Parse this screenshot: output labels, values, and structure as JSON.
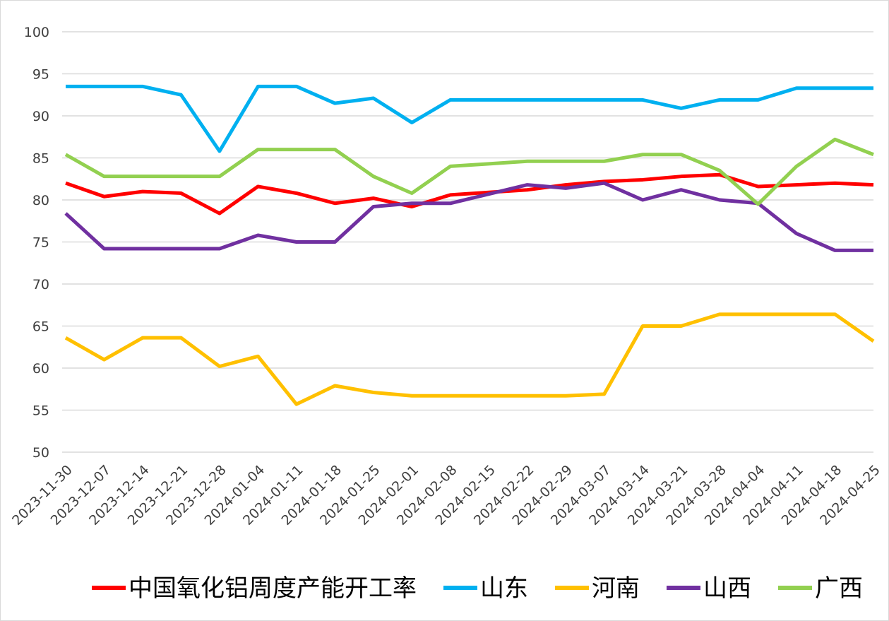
{
  "chart_data": {
    "type": "line",
    "categories": [
      "2023-11-30",
      "2023-12-07",
      "2023-12-14",
      "2023-12-21",
      "2023-12-28",
      "2024-01-04",
      "2024-01-11",
      "2024-01-18",
      "2024-01-25",
      "2024-02-01",
      "2024-02-08",
      "2024-02-15",
      "2024-02-22",
      "2024-02-29",
      "2024-03-07",
      "2024-03-14",
      "2024-03-21",
      "2024-03-28",
      "2024-04-04",
      "2024-04-11",
      "2024-04-18",
      "2024-04-25"
    ],
    "series": [
      {
        "name": "中国氧化铝周度产能开工率",
        "color": "#ff0000",
        "values": [
          82,
          80.4,
          81,
          80.8,
          78.4,
          81.6,
          80.8,
          79.6,
          80.2,
          79.2,
          80.6,
          80.9,
          81.2,
          81.8,
          82.2,
          82.4,
          82.8,
          83,
          81.6,
          81.8,
          82,
          81.8
        ]
      },
      {
        "name": "山东",
        "color": "#00b0f0",
        "values": [
          93.5,
          93.5,
          93.5,
          92.5,
          85.8,
          93.5,
          93.5,
          91.5,
          92.1,
          89.2,
          91.9,
          91.9,
          91.9,
          91.9,
          91.9,
          91.9,
          90.9,
          91.9,
          91.9,
          93.3,
          93.3,
          93.3
        ]
      },
      {
        "name": "河南",
        "color": "#ffc000",
        "values": [
          63.6,
          61,
          63.6,
          63.6,
          60.2,
          61.4,
          55.7,
          57.9,
          57.1,
          56.7,
          56.7,
          56.7,
          56.7,
          56.7,
          56.9,
          65,
          65,
          66.4,
          66.4,
          66.4,
          66.4,
          63.2
        ]
      },
      {
        "name": "山西",
        "color": "#7030a0",
        "values": [
          78.4,
          74.2,
          74.2,
          74.2,
          74.2,
          75.8,
          75,
          75,
          79.2,
          79.6,
          79.6,
          80.7,
          81.8,
          81.4,
          82,
          80,
          81.2,
          80,
          79.6,
          76,
          74,
          74
        ]
      },
      {
        "name": "广西",
        "color": "#92d050",
        "values": [
          85.4,
          82.8,
          82.8,
          82.8,
          82.8,
          86,
          86,
          86,
          82.8,
          80.8,
          84,
          84.3,
          84.6,
          84.6,
          84.6,
          85.4,
          85.4,
          83.5,
          79.5,
          84,
          87.2,
          85.4
        ]
      }
    ],
    "ylim": [
      50,
      100
    ],
    "yticks": [
      50,
      55,
      60,
      65,
      70,
      75,
      80,
      85,
      90,
      95,
      100
    ],
    "grid": true,
    "legend": "bottom"
  }
}
